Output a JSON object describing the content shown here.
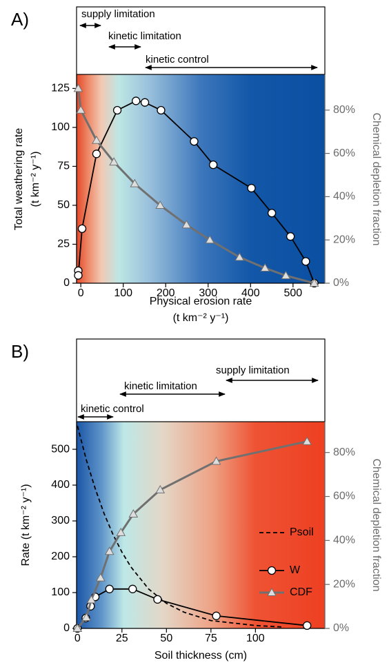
{
  "chart_data": [
    {
      "type": "line",
      "panel_label": "A)",
      "annotations": [
        "supply limitation",
        "kinetic limitation",
        "kinetic control"
      ],
      "xlabel": [
        "Physical erosion rate",
        "(t km⁻² y⁻¹)"
      ],
      "ylabel": [
        "Total weathering rate",
        "(t km⁻² y⁻¹)"
      ],
      "y2label": "Chemical depletion fraction",
      "xlim": [
        -10,
        575
      ],
      "xticks": [
        0,
        100,
        200,
        300,
        400,
        500
      ],
      "ylim": [
        0,
        134
      ],
      "yticks": [
        0,
        25,
        50,
        75,
        100,
        125
      ],
      "y2lim": [
        0,
        96.5
      ],
      "y2ticks": [
        {
          "value": 0,
          "label": "0%"
        },
        {
          "value": 20,
          "label": "20%"
        },
        {
          "value": 40,
          "label": "40%"
        },
        {
          "value": 60,
          "label": "60%"
        },
        {
          "value": 80,
          "label": "80%"
        }
      ],
      "legend": false,
      "series": [
        {
          "color": "#000000",
          "marker": "circle",
          "x": [
            -6,
            -6,
            3,
            37,
            86,
            130,
            151,
            189,
            267,
            312,
            402,
            450,
            494,
            530,
            550
          ],
          "values": [
            8,
            5,
            35,
            83,
            111,
            117,
            116,
            111,
            91,
            76,
            61,
            45,
            30,
            14,
            0
          ]
        },
        {
          "color": "#707070",
          "marker": "triangle",
          "axis": "y2",
          "x": [
            -6,
            0,
            37,
            78,
            127,
            187,
            249,
            304,
            374,
            434,
            483,
            550
          ],
          "values": [
            90,
            80,
            66,
            56,
            46,
            36,
            27,
            20,
            12,
            7,
            3.5,
            0
          ]
        }
      ]
    },
    {
      "type": "line",
      "panel_label": "B)",
      "annotations": [
        "supply limitation",
        "kinetic limitation",
        "kinetic control"
      ],
      "xlabel": [
        "Soil thickness (cm)"
      ],
      "ylabel": [
        "Rate (t km⁻² y⁻¹)"
      ],
      "y2label": "Chemical depletion fraction",
      "xlim": [
        -0.5,
        139
      ],
      "xticks": [
        0,
        25,
        50,
        75,
        100
      ],
      "ylim": [
        0,
        577
      ],
      "yticks": [
        0,
        100,
        200,
        300,
        400,
        500
      ],
      "y2lim": [
        0,
        94
      ],
      "y2ticks": [
        {
          "value": 0,
          "label": "0%"
        },
        {
          "value": 20,
          "label": "20%"
        },
        {
          "value": 40,
          "label": "40%"
        },
        {
          "value": 60,
          "label": "60%"
        },
        {
          "value": 80,
          "label": "80%"
        }
      ],
      "legend": true,
      "series": [
        {
          "name": "Psoil",
          "color": "#000000",
          "dash": true,
          "x": [
            0,
            5,
            10,
            15,
            20,
            25,
            30,
            40,
            50,
            60,
            75,
            100,
            115
          ],
          "values": [
            565,
            470,
            390,
            320,
            262,
            213,
            172,
            110,
            70,
            45,
            22,
            8,
            4
          ]
        },
        {
          "name": "W",
          "color": "#000000",
          "marker": "circle",
          "x": [
            0,
            4.7,
            7.4,
            10,
            18,
            31,
            45,
            78,
            129
          ],
          "values": [
            0,
            29,
            62,
            88,
            110,
            110,
            81,
            35,
            8
          ]
        },
        {
          "name": "CDF",
          "color": "#707070",
          "marker": "triangle",
          "axis": "y2",
          "x": [
            0,
            5,
            7.8,
            13,
            18,
            24.4,
            31.4,
            46.5,
            78,
            129
          ],
          "values": [
            0,
            5,
            13,
            23,
            35,
            43.6,
            52,
            63,
            76,
            85
          ]
        }
      ]
    }
  ]
}
